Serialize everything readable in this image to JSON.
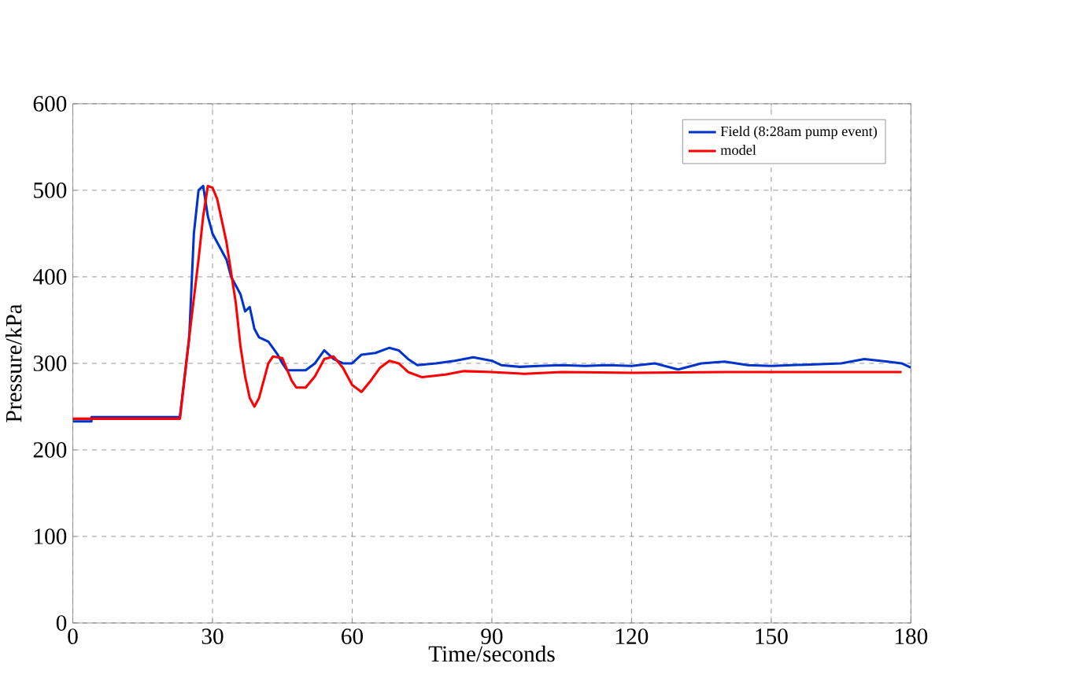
{
  "chart_data": {
    "type": "line",
    "xlabel": "Time/seconds",
    "ylabel": "Pressure/kPa",
    "xlim": [
      0,
      180
    ],
    "xticks": [
      0,
      30,
      60,
      90,
      120,
      150,
      180
    ],
    "ylim": [
      0,
      600
    ],
    "yticks": [
      0,
      100,
      200,
      300,
      400,
      500,
      600
    ],
    "grid": true,
    "legend": "top right",
    "marker": "none",
    "line_style": "solid",
    "series": [
      {
        "name": "Field (8:28am pump event)",
        "color": "#0033cc",
        "x": [
          0,
          4,
          4,
          23,
          25,
          26,
          27,
          28,
          29,
          30,
          31,
          33,
          34,
          36,
          37,
          38,
          39,
          40,
          42,
          44,
          45,
          46,
          50,
          52,
          54,
          56,
          58,
          60,
          62,
          65,
          68,
          70,
          72,
          74,
          78,
          82,
          86,
          90,
          92,
          96,
          100,
          105,
          110,
          115,
          120,
          125,
          130,
          135,
          140,
          145,
          150,
          155,
          160,
          165,
          170,
          175,
          178,
          180
        ],
        "values": [
          233,
          233,
          238,
          238,
          330,
          450,
          500,
          505,
          470,
          450,
          440,
          420,
          400,
          380,
          360,
          365,
          340,
          330,
          325,
          310,
          300,
          292,
          292,
          300,
          315,
          305,
          300,
          300,
          310,
          312,
          318,
          315,
          305,
          298,
          300,
          303,
          307,
          303,
          298,
          296,
          297,
          298,
          297,
          298,
          297,
          300,
          293,
          300,
          302,
          298,
          297,
          298,
          299,
          300,
          305,
          302,
          300,
          295
        ]
      },
      {
        "name": "model",
        "color": "#ff0000",
        "x": [
          0,
          23,
          25,
          27,
          28,
          29,
          30,
          31,
          33,
          35,
          36,
          37,
          38,
          39,
          40,
          42,
          43,
          45,
          47,
          48,
          50,
          52,
          54,
          56,
          58,
          60,
          62,
          64,
          66,
          68,
          70,
          72,
          75,
          80,
          84,
          90,
          97,
          105,
          120,
          140,
          160,
          178
        ],
        "values": [
          236,
          236,
          330,
          420,
          470,
          505,
          503,
          490,
          440,
          370,
          320,
          285,
          260,
          250,
          260,
          300,
          308,
          306,
          280,
          272,
          272,
          285,
          305,
          308,
          295,
          275,
          267,
          280,
          295,
          303,
          300,
          290,
          284,
          287,
          291,
          290,
          288,
          290,
          289,
          290,
          290,
          290
        ]
      }
    ]
  }
}
